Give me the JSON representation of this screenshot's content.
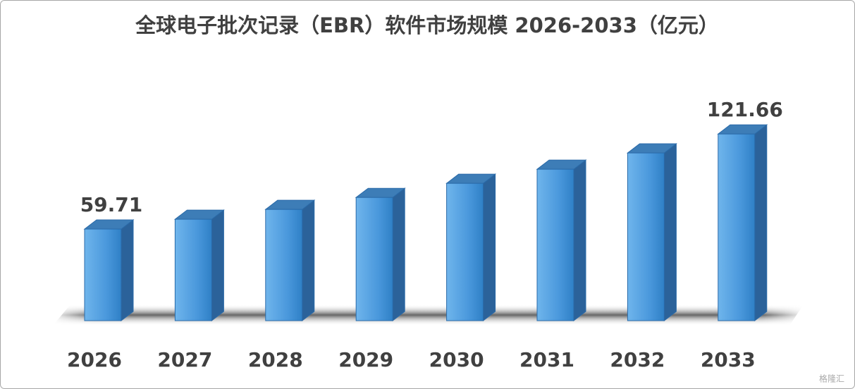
{
  "chart_data": {
    "type": "bar3d",
    "title": "全球电子批次记录（EBR）软件市场规模 2026-2033（亿元）",
    "categories": [
      "2026",
      "2027",
      "2028",
      "2029",
      "2030",
      "2031",
      "2032",
      "2033"
    ],
    "values": [
      59.71,
      66.1,
      72.5,
      80.3,
      89.5,
      98.7,
      109.3,
      121.66
    ],
    "value_labels": [
      "59.71",
      null,
      null,
      null,
      null,
      null,
      null,
      "121.66"
    ],
    "color": "#4a98dc",
    "ylim": [
      0,
      130
    ],
    "watermark": "格隆汇"
  }
}
